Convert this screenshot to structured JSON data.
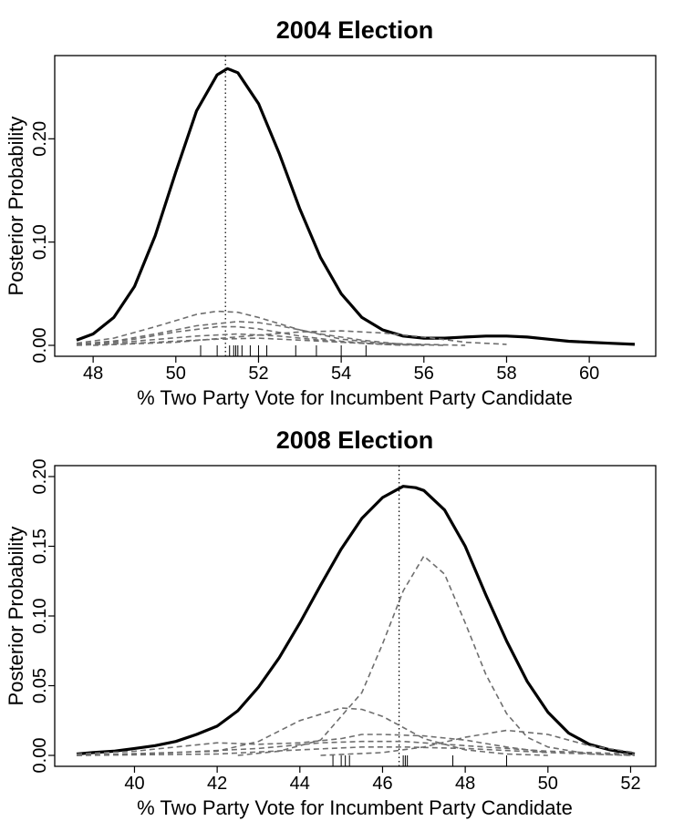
{
  "chart_data": [
    {
      "type": "line",
      "title": "2004 Election",
      "xlabel": "% Two Party Vote for Incumbent Party Candidate",
      "ylabel": "Posterior Probability",
      "xlim": [
        47.6,
        61.1
      ],
      "ylim": [
        0.0,
        0.27
      ],
      "x_ticks": [
        "48",
        "50",
        "52",
        "54",
        "56",
        "58",
        "60"
      ],
      "y_ticks": [
        "0.00",
        "0.10",
        "0.20"
      ],
      "grid": false,
      "legend": "none",
      "vertical_line_x": 51.2,
      "series": [
        {
          "style": "solid",
          "x": [
            47.6,
            48.0,
            48.5,
            49.0,
            49.5,
            50.0,
            50.5,
            51.0,
            51.25,
            51.5,
            52.0,
            52.5,
            53.0,
            53.5,
            54.0,
            54.5,
            55.0,
            55.5,
            56.0,
            56.5,
            57.0,
            57.5,
            58.0,
            58.5,
            59.0,
            59.5,
            60.0,
            60.5,
            61.1
          ],
          "y": [
            0.005,
            0.011,
            0.027,
            0.057,
            0.106,
            0.168,
            0.227,
            0.262,
            0.268,
            0.264,
            0.234,
            0.186,
            0.132,
            0.085,
            0.05,
            0.027,
            0.015,
            0.009,
            0.007,
            0.007,
            0.008,
            0.009,
            0.009,
            0.008,
            0.006,
            0.004,
            0.003,
            0.002,
            0.001
          ]
        },
        {
          "style": "dashed",
          "x": [
            47.6,
            48.5,
            49.5,
            50.5,
            51.0,
            51.5,
            52.0,
            53.0,
            54.0,
            55.0,
            56.0,
            57.0
          ],
          "y": [
            0.002,
            0.007,
            0.018,
            0.03,
            0.033,
            0.032,
            0.027,
            0.015,
            0.006,
            0.002,
            0.001,
            0.0
          ]
        },
        {
          "style": "dashed",
          "x": [
            47.6,
            48.5,
            49.5,
            50.5,
            51.5,
            52.0,
            52.5,
            53.5,
            54.5,
            55.5,
            56.5
          ],
          "y": [
            0.001,
            0.004,
            0.011,
            0.019,
            0.023,
            0.022,
            0.019,
            0.011,
            0.005,
            0.001,
            0.0
          ]
        },
        {
          "style": "dashed",
          "x": [
            47.6,
            49.0,
            50.0,
            51.0,
            51.5,
            52.0,
            53.0,
            54.0,
            55.0,
            56.0
          ],
          "y": [
            0.001,
            0.006,
            0.013,
            0.018,
            0.018,
            0.016,
            0.009,
            0.004,
            0.001,
            0.0
          ]
        },
        {
          "style": "dashed",
          "x": [
            48.0,
            50.0,
            52.0,
            53.0,
            54.0,
            55.0,
            56.0,
            57.0,
            58.0
          ],
          "y": [
            0.0,
            0.003,
            0.01,
            0.013,
            0.014,
            0.012,
            0.008,
            0.003,
            0.001
          ]
        },
        {
          "style": "dashed",
          "x": [
            47.6,
            49.0,
            50.5,
            51.5,
            52.5,
            54.0,
            55.5
          ],
          "y": [
            0.001,
            0.004,
            0.009,
            0.011,
            0.009,
            0.003,
            0.0
          ]
        },
        {
          "style": "dashed",
          "x": [
            47.6,
            49.5,
            51.0,
            52.0,
            53.0,
            54.5,
            56.0
          ],
          "y": [
            0.0,
            0.003,
            0.006,
            0.007,
            0.005,
            0.002,
            0.0
          ]
        }
      ],
      "rug_x": [
        50.6,
        51.0,
        51.3,
        51.4,
        51.45,
        51.5,
        51.6,
        51.8,
        52.0,
        52.2,
        52.9,
        53.4,
        54.0,
        54.6
      ]
    },
    {
      "type": "line",
      "title": "2008 Election",
      "xlabel": "% Two Party Vote for Incumbent Party Candidate",
      "ylabel": "Posterior Probability",
      "xlim": [
        38.6,
        52.1
      ],
      "ylim": [
        0.0,
        0.2
      ],
      "x_ticks": [
        "40",
        "42",
        "44",
        "46",
        "48",
        "50",
        "52"
      ],
      "y_ticks": [
        "0.00",
        "0.05",
        "0.10",
        "0.15",
        "0.20"
      ],
      "grid": false,
      "legend": "none",
      "vertical_line_x": 46.4,
      "series": [
        {
          "style": "solid",
          "x": [
            38.6,
            39.0,
            39.5,
            40.0,
            40.5,
            41.0,
            41.5,
            42.0,
            42.5,
            43.0,
            43.5,
            44.0,
            44.5,
            45.0,
            45.5,
            46.0,
            46.5,
            46.8,
            47.0,
            47.5,
            48.0,
            48.5,
            49.0,
            49.5,
            50.0,
            50.5,
            51.0,
            51.5,
            52.1
          ],
          "y": [
            0.001,
            0.002,
            0.003,
            0.005,
            0.007,
            0.01,
            0.015,
            0.021,
            0.032,
            0.049,
            0.07,
            0.095,
            0.122,
            0.148,
            0.17,
            0.185,
            0.193,
            0.192,
            0.19,
            0.176,
            0.15,
            0.115,
            0.082,
            0.053,
            0.031,
            0.016,
            0.008,
            0.004,
            0.001
          ]
        },
        {
          "style": "dashed",
          "x": [
            42.5,
            43.5,
            44.5,
            45.5,
            46.0,
            46.5,
            47.0,
            47.5,
            48.0,
            48.5,
            49.0,
            49.5,
            50.0,
            51.0,
            52.0
          ],
          "y": [
            0.0,
            0.003,
            0.011,
            0.045,
            0.08,
            0.118,
            0.143,
            0.13,
            0.095,
            0.058,
            0.03,
            0.013,
            0.006,
            0.001,
            0.0
          ]
        },
        {
          "style": "dashed",
          "x": [
            38.6,
            42.0,
            43.0,
            44.0,
            45.0,
            45.5,
            46.0,
            47.0,
            48.0,
            49.0,
            50.0
          ],
          "y": [
            0.0,
            0.003,
            0.01,
            0.025,
            0.034,
            0.033,
            0.028,
            0.012,
            0.004,
            0.001,
            0.0
          ]
        },
        {
          "style": "dashed",
          "x": [
            38.6,
            40.0,
            41.0,
            42.0,
            43.0,
            44.0,
            45.0,
            45.5,
            46.0,
            47.0,
            48.0,
            49.0,
            50.0
          ],
          "y": [
            0.001,
            0.003,
            0.006,
            0.009,
            0.008,
            0.009,
            0.012,
            0.015,
            0.015,
            0.014,
            0.011,
            0.006,
            0.002
          ]
        },
        {
          "style": "dashed",
          "x": [
            44.5,
            46.0,
            47.0,
            48.0,
            49.0,
            50.0,
            51.0,
            52.1
          ],
          "y": [
            0.0,
            0.002,
            0.006,
            0.013,
            0.018,
            0.015,
            0.007,
            0.002
          ]
        },
        {
          "style": "dashed",
          "x": [
            38.6,
            41.0,
            43.0,
            44.5,
            45.5,
            46.5,
            48.0,
            50.0,
            52.1
          ],
          "y": [
            0.0,
            0.002,
            0.005,
            0.009,
            0.01,
            0.01,
            0.007,
            0.003,
            0.001
          ]
        },
        {
          "style": "dashed",
          "x": [
            38.6,
            42.0,
            44.0,
            45.5,
            46.5,
            48.0,
            50.0,
            52.1
          ],
          "y": [
            0.0,
            0.001,
            0.004,
            0.006,
            0.006,
            0.005,
            0.002,
            0.0
          ]
        }
      ],
      "rug_x": [
        44.8,
        45.0,
        45.1,
        45.2,
        46.5,
        46.55,
        46.6,
        47.7,
        49.0
      ]
    }
  ]
}
